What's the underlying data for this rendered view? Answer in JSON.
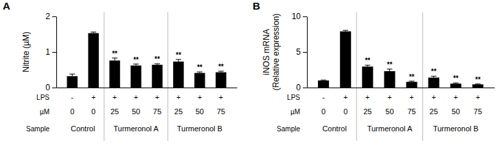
{
  "chart_data": [
    {
      "type": "bar",
      "title": "A",
      "y_label": [
        "Nitrite (µM)"
      ],
      "row_labels": [
        "LPS",
        "µM",
        "Sample"
      ],
      "categories": [
        "-",
        "+",
        "+",
        "+",
        "+",
        "+",
        "+",
        "+"
      ],
      "concentration": [
        0,
        0,
        25,
        50,
        75,
        25,
        50,
        75
      ],
      "groups": [
        {
          "label": "Control",
          "span": 2
        },
        {
          "label": "Turmeronol A",
          "span": 3
        },
        {
          "label": "Turmeronol B",
          "span": 3
        }
      ],
      "values": [
        0.32,
        1.53,
        0.76,
        0.62,
        0.64,
        0.73,
        0.41,
        0.43
      ],
      "errors": [
        0.06,
        0.03,
        0.07,
        0.04,
        0.03,
        0.06,
        0.03,
        0.03
      ],
      "significance": [
        null,
        null,
        "**",
        "**",
        "**",
        "**",
        "**",
        "**"
      ],
      "color": "#000000",
      "ylim": [
        0,
        2
      ],
      "yticks": [
        0,
        1,
        2
      ],
      "grid": false
    },
    {
      "type": "bar",
      "title": "B",
      "y_label": [
        "iNOS mRNA",
        "(Relative expression)"
      ],
      "row_labels": [
        "LPS",
        "µM",
        "Sample"
      ],
      "categories": [
        "-",
        "+",
        "+",
        "+",
        "+",
        "+",
        "+",
        "+"
      ],
      "concentration": [
        0,
        0,
        25,
        50,
        75,
        25,
        50,
        75
      ],
      "groups": [
        {
          "label": "Control",
          "span": 2
        },
        {
          "label": "Turmeronol A",
          "span": 3
        },
        {
          "label": "Turmeronol B",
          "span": 3
        }
      ],
      "values": [
        1.0,
        7.9,
        2.95,
        2.3,
        0.8,
        1.4,
        0.55,
        0.45
      ],
      "errors": [
        0.05,
        0.15,
        0.2,
        0.3,
        0.1,
        0.2,
        0.1,
        0.05
      ],
      "significance": [
        null,
        null,
        "**",
        "**",
        "**",
        "**",
        "**",
        "**"
      ],
      "color": "#000000",
      "ylim": [
        0,
        10
      ],
      "yticks": [
        0,
        5,
        10
      ],
      "grid": false
    }
  ]
}
